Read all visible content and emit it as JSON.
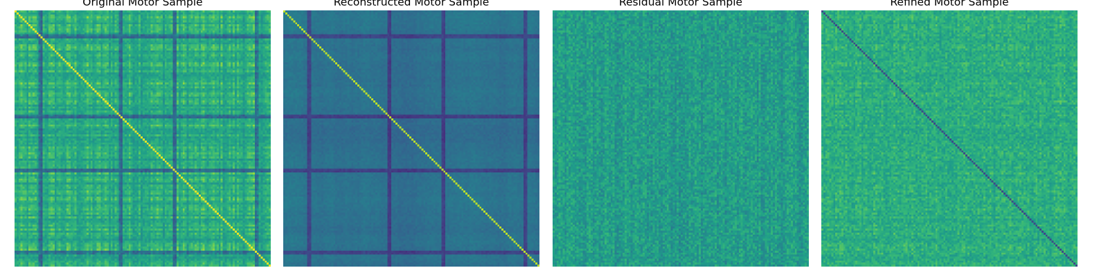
{
  "chart_data": [
    {
      "type": "heatmap",
      "title": "Original Motor Sample",
      "colormap": "viridis",
      "axes": "off",
      "structure": "connectivity matrix; bright yellow main diagonal; block/banded striping; mostly green-yellow values"
    },
    {
      "type": "heatmap",
      "title": "Reconstructed Motor Sample",
      "colormap": "viridis",
      "axes": "off",
      "structure": "smooth blue-teal blocks with dark purple bands; thin yellow main diagonal"
    },
    {
      "type": "heatmap",
      "title": "Residual Motor Sample",
      "colormap": "viridis",
      "axes": "off",
      "structure": "fine-grained green noise with faint banding; no strong diagonal"
    },
    {
      "type": "heatmap",
      "title": "Refined Motor Sample",
      "colormap": "viridis",
      "axes": "off",
      "structure": "bright green texture with striping; dark blue main diagonal"
    }
  ]
}
